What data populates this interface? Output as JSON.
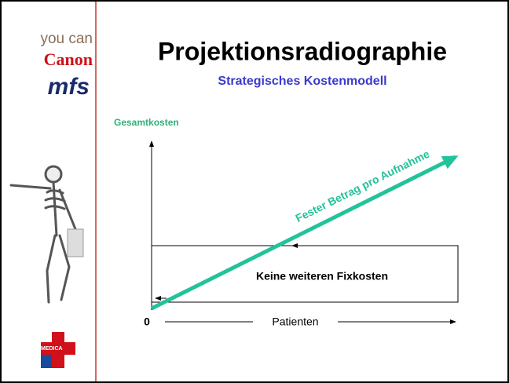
{
  "sidebar": {
    "tagline": "you can",
    "brand": "Canon",
    "logo": "mfs",
    "event_logo": "MEDICA"
  },
  "header": {
    "title": "Projektionsradiographie",
    "subtitle": "Strategisches Kostenmodell"
  },
  "diagram": {
    "y_axis_label": "Gesamtkosten",
    "line_label": "Fester Betrag pro Aufnahme",
    "box_label": "Keine weiteren Fixkosten",
    "origin_label": "0",
    "x_axis_label": "Patienten"
  }
}
